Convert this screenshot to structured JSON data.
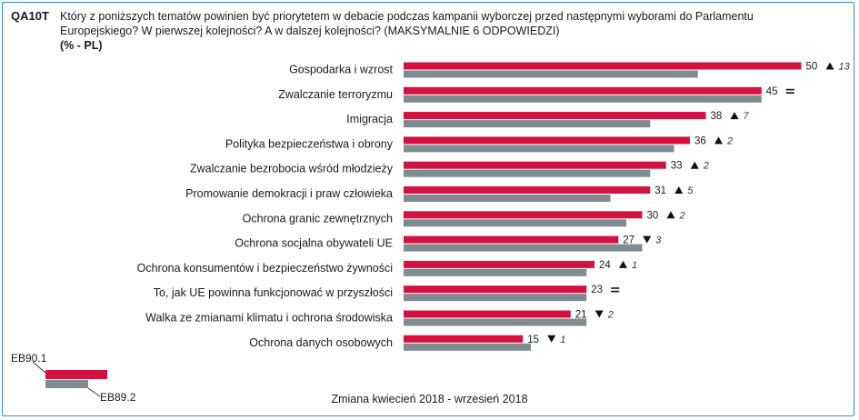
{
  "header": {
    "code": "QA10T",
    "question": "Który z poniższych tematów powinien być priorytetem w debacie podczas kampanii wyborczej przed następnymi wyborami do Parlamentu Europejskiego? W pierwszej kolejności? A w dalszej kolejności? (MAKSYMALNIE 6 ODPOWIEDZI)",
    "unit": "(% - PL)"
  },
  "legend": {
    "current": "EB90.1",
    "previous": "EB89.2"
  },
  "footer": "Zmiana kwiecień 2018 - wrzesień 2018",
  "colors": {
    "current": "#d4113f",
    "previous": "#7f8a91",
    "border": "#2f8fc4"
  },
  "chart_data": {
    "type": "bar",
    "orientation": "horizontal",
    "categories": [
      "Gospodarka i wzrost",
      "Zwalczanie terroryzmu",
      "Imigracja",
      "Polityka bezpieczeństwa i obrony",
      "Zwalczanie bezrobocia wśród młodzieży",
      "Promowanie demokracji i praw człowieka",
      "Ochrona granic zewnętrznych",
      "Ochrona socjalna obywateli UE",
      "Ochrona konsumentów i bezpieczeństwo żywności",
      "To, jak UE powinna funkcjonować w przyszłości",
      "Walka ze zmianami klimatu i ochrona środowiska",
      "Ochrona danych osobowych"
    ],
    "series": [
      {
        "name": "EB90.1",
        "values": [
          50,
          45,
          38,
          36,
          33,
          31,
          30,
          27,
          24,
          23,
          21,
          15
        ]
      },
      {
        "name": "EB89.2",
        "values": [
          37,
          45,
          31,
          34,
          31,
          26,
          28,
          30,
          23,
          23,
          23,
          16
        ]
      }
    ],
    "changes": [
      {
        "dir": "up",
        "value": "13"
      },
      {
        "dir": "eq",
        "value": ""
      },
      {
        "dir": "up",
        "value": "7"
      },
      {
        "dir": "up",
        "value": "2"
      },
      {
        "dir": "up",
        "value": "2"
      },
      {
        "dir": "up",
        "value": "5"
      },
      {
        "dir": "up",
        "value": "2"
      },
      {
        "dir": "down",
        "value": "3"
      },
      {
        "dir": "up",
        "value": "1"
      },
      {
        "dir": "eq",
        "value": ""
      },
      {
        "dir": "down",
        "value": "2"
      },
      {
        "dir": "down",
        "value": "1"
      }
    ],
    "xlim": [
      0,
      50
    ]
  }
}
